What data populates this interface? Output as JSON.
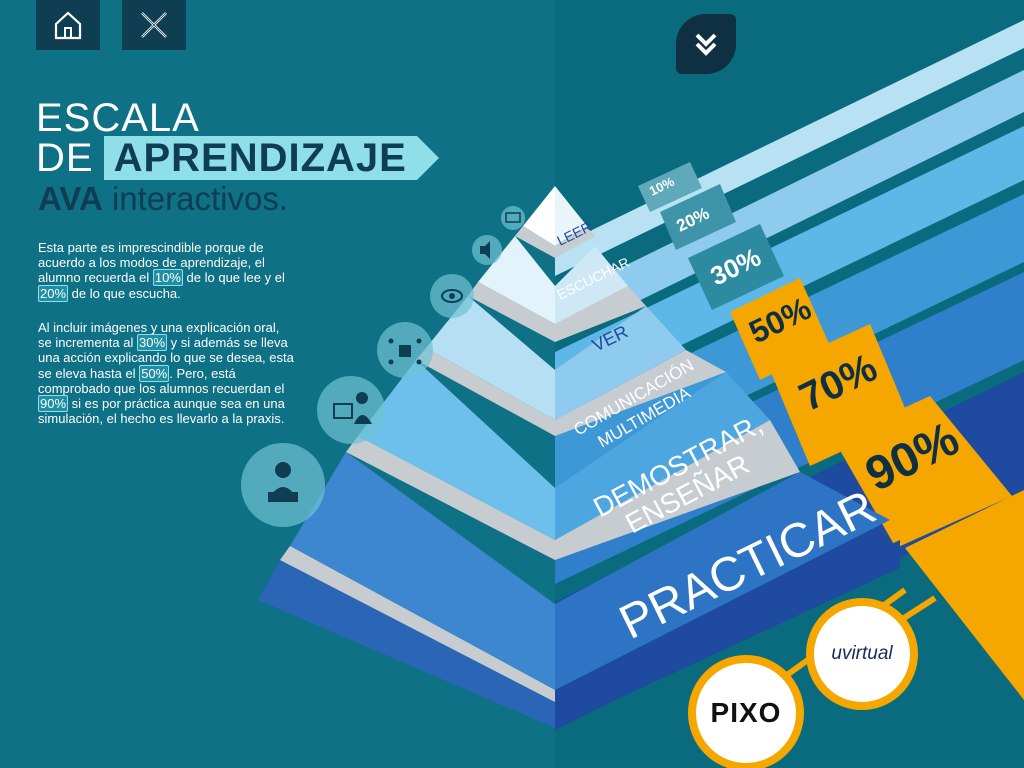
{
  "colors": {
    "bg_dark": "#0d6b7f",
    "navy": "#0f3d52",
    "accent_light": "#8fdfe8",
    "orange": "#f5a700",
    "practicar_blue": "#1e4aa0"
  },
  "nav": {
    "home_icon": "home-icon",
    "close_icon": "close-icon",
    "down_icon": "double-chevron-down-icon"
  },
  "title": {
    "line1": "ESCALA",
    "line2a": "DE",
    "line2b": "APRENDIZAJE",
    "line3a": "AVA",
    "line3b": "interactivos."
  },
  "body": {
    "p1_a": "Esta parte es imprescindible porque de acuerdo a los modos de aprendizaje, el alumno recuerda el ",
    "p1_hl1": "10%",
    "p1_b": " de lo que lee y el ",
    "p1_hl2": "20%",
    "p1_c": " de lo que escucha.",
    "p2_a": "Al incluir imágenes y una explicación oral, se incrementa al ",
    "p2_hl1": "30%",
    "p2_b": " y si además se lleva una acción explicando lo que se desea, esta se eleva hasta el ",
    "p2_hl2": "50%",
    "p2_c": ". Pero, está comprobado que los alumnos recuerdan el ",
    "p2_hl3": "90%",
    "p2_d": " si es por práctica aunque sea en una simulación, el hecho es llevarlo a la praxis."
  },
  "pyramid": {
    "levels": [
      {
        "label": "LEER",
        "percent": "10%",
        "icon": "book-icon"
      },
      {
        "label": "ESCUCHAR",
        "percent": "20%",
        "icon": "speaker-icon"
      },
      {
        "label": "VER",
        "percent": "30%",
        "icon": "eye-icon"
      },
      {
        "label_1": "COMUNICACIÓN",
        "label_2": "MULTIMEDIA",
        "percent": "50%",
        "icon": "network-icon"
      },
      {
        "label_1": "DEMOSTRAR,",
        "label_2": "ENSEÑAR",
        "percent": "70%",
        "icon": "presenter-icon"
      },
      {
        "label": "PRACTICAR",
        "percent": "90%",
        "icon": "person-laptop-icon"
      }
    ]
  },
  "logos": {
    "pixo": "PIXO",
    "uvirtual": "uvirtual"
  }
}
